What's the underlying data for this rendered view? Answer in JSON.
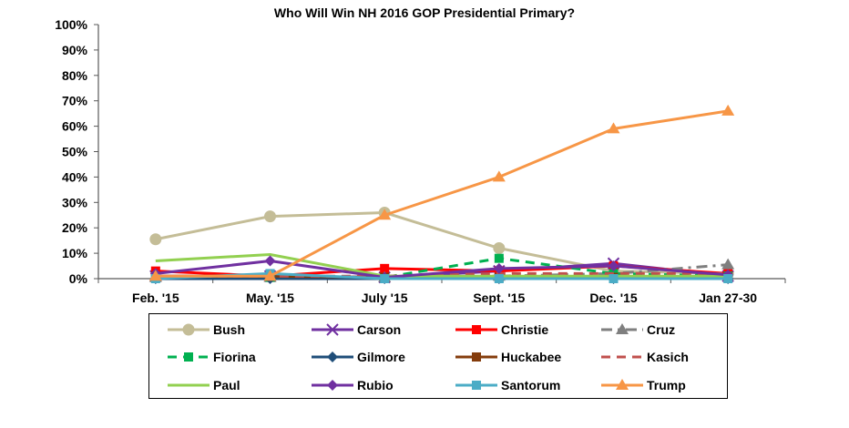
{
  "chart_data": {
    "type": "line",
    "title": "Who Will Win NH 2016 GOP Presidential Primary?",
    "xlabel": "",
    "ylabel": "",
    "x": [
      "Feb. '15",
      "May. '15",
      "July '15",
      "Sept. '15",
      "Dec. '15",
      "Jan 27-30"
    ],
    "ylim": [
      0,
      100
    ],
    "yticks": [
      "0%",
      "10%",
      "20%",
      "30%",
      "40%",
      "50%",
      "60%",
      "70%",
      "80%",
      "90%",
      "100%"
    ],
    "grid": false,
    "legend_position": "bottom",
    "series": [
      {
        "name": "Bush",
        "color": "#c4bd97",
        "marker": "circle",
        "dash": "solid",
        "values": [
          15.5,
          24.5,
          26,
          12,
          3,
          2
        ]
      },
      {
        "name": "Carson",
        "color": "#7030a0",
        "marker": "x",
        "dash": "solid",
        "values": [
          1,
          1,
          0.5,
          3,
          6,
          1
        ]
      },
      {
        "name": "Christie",
        "color": "#ff0000",
        "marker": "square",
        "dash": "solid",
        "values": [
          3,
          1,
          4,
          3,
          5,
          2
        ]
      },
      {
        "name": "Cruz",
        "color": "#7f7f7f",
        "marker": "triangle",
        "dash": "dashdot",
        "values": [
          0.5,
          0.5,
          0.5,
          1,
          2,
          5.5
        ]
      },
      {
        "name": "Fiorina",
        "color": "#00b050",
        "marker": "square",
        "dash": "dash",
        "values": [
          0.5,
          0.5,
          0.5,
          8,
          2,
          1
        ]
      },
      {
        "name": "Gilmore",
        "color": "#1f4e79",
        "marker": "diamond",
        "dash": "solid",
        "values": [
          0,
          0,
          0,
          0,
          0,
          0
        ]
      },
      {
        "name": "Huckabee",
        "color": "#843c0c",
        "marker": "square",
        "dash": "solid",
        "values": [
          1,
          1,
          0.5,
          0.5,
          0.5,
          0.5
        ]
      },
      {
        "name": "Kasich",
        "color": "#c0504d",
        "marker": "none",
        "dash": "dash",
        "values": [
          1,
          1,
          1,
          2,
          2,
          2
        ]
      },
      {
        "name": "Paul",
        "color": "#92d050",
        "marker": "none",
        "dash": "solid",
        "values": [
          7,
          9.5,
          1,
          1,
          1,
          1
        ]
      },
      {
        "name": "Rubio",
        "color": "#7030a0",
        "marker": "diamond",
        "dash": "solid",
        "values": [
          2,
          7,
          0.5,
          4,
          5,
          1.5
        ]
      },
      {
        "name": "Santorum",
        "color": "#4bacc6",
        "marker": "square",
        "dash": "solid",
        "values": [
          0,
          2,
          0,
          0,
          0,
          0
        ]
      },
      {
        "name": "Trump",
        "color": "#f79646",
        "marker": "triangle",
        "dash": "solid",
        "values": [
          1,
          1,
          25,
          40,
          59,
          66
        ]
      }
    ]
  }
}
